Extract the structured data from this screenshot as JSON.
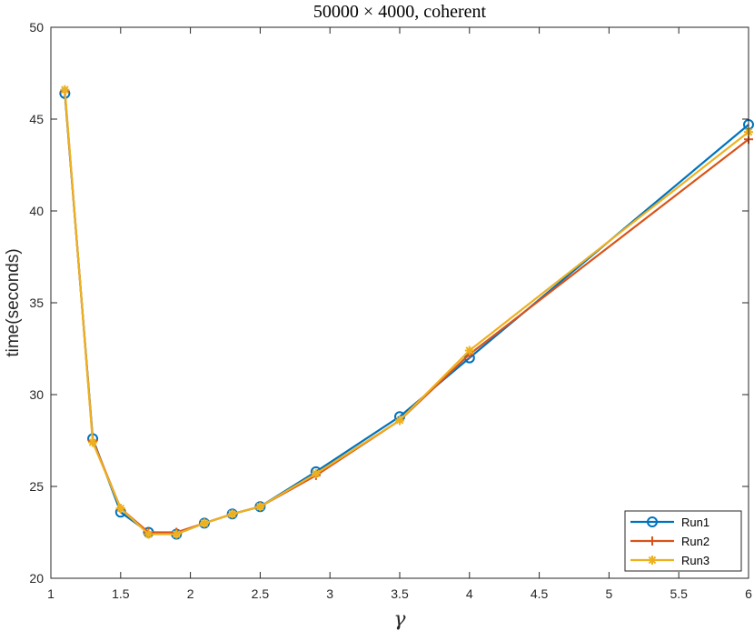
{
  "chart_data": {
    "type": "line",
    "title": "50000 × 4000, coherent",
    "xlabel": "γ",
    "ylabel": "time(seconds)",
    "xlim": [
      1,
      6
    ],
    "ylim": [
      20,
      50
    ],
    "xticks": [
      1,
      1.5,
      2,
      2.5,
      3,
      3.5,
      4,
      4.5,
      5,
      5.5,
      6
    ],
    "xtick_labels": [
      "1",
      "1.5",
      "2",
      "2.5",
      "3",
      "3.5",
      "4",
      "4.5",
      "5",
      "5.5",
      "6"
    ],
    "yticks": [
      20,
      25,
      30,
      35,
      40,
      45,
      50
    ],
    "ytick_labels": [
      "20",
      "25",
      "30",
      "35",
      "40",
      "45",
      "50"
    ],
    "grid": false,
    "legend_position": "bottom-right",
    "x": [
      1.1,
      1.3,
      1.5,
      1.7,
      1.9,
      2.1,
      2.3,
      2.5,
      2.9,
      3.5,
      4.0,
      6.0
    ],
    "series": [
      {
        "name": "Run1",
        "marker": "circle",
        "color": "#0072BD",
        "values": [
          46.4,
          27.6,
          23.6,
          22.5,
          22.4,
          23.0,
          23.5,
          23.9,
          25.8,
          28.8,
          32.0,
          44.7
        ]
      },
      {
        "name": "Run2",
        "marker": "plus",
        "color": "#D95319",
        "values": [
          46.5,
          27.5,
          23.8,
          22.5,
          22.5,
          23.0,
          23.5,
          23.9,
          25.6,
          28.6,
          32.2,
          43.9
        ]
      },
      {
        "name": "Run3",
        "marker": "asterisk",
        "color": "#EDB120",
        "values": [
          46.6,
          27.4,
          23.8,
          22.4,
          22.4,
          23.0,
          23.5,
          23.9,
          25.7,
          28.6,
          32.4,
          44.3
        ]
      }
    ]
  }
}
